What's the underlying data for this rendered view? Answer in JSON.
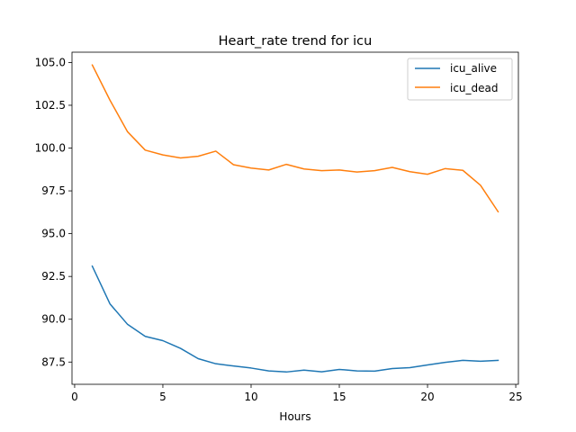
{
  "chart_data": {
    "type": "line",
    "title": "Heart_rate trend for icu",
    "xlabel": "Hours",
    "ylabel": "",
    "xlim": [
      -0.15,
      25.15
    ],
    "ylim": [
      86.2,
      105.6
    ],
    "xticks": [
      0,
      5,
      10,
      15,
      20,
      25
    ],
    "yticks": [
      87.5,
      90.0,
      92.5,
      95.0,
      97.5,
      100.0,
      102.5,
      105.0
    ],
    "xtick_labels": [
      "0",
      "5",
      "10",
      "15",
      "20",
      "25"
    ],
    "ytick_labels": [
      "87.5",
      "90.0",
      "92.5",
      "95.0",
      "97.5",
      "100.0",
      "102.5",
      "105.0"
    ],
    "grid": false,
    "legend_position": "top-right",
    "x": [
      1,
      2,
      3,
      4,
      5,
      6,
      7,
      8,
      9,
      10,
      11,
      12,
      13,
      14,
      15,
      16,
      17,
      18,
      19,
      20,
      21,
      22,
      23,
      24
    ],
    "series": [
      {
        "name": "icu_alive",
        "color": "#1f77b4",
        "values": [
          93.1,
          90.9,
          89.7,
          89.0,
          88.75,
          88.3,
          87.7,
          87.4,
          87.27,
          87.15,
          86.98,
          86.92,
          87.03,
          86.93,
          87.07,
          86.98,
          86.97,
          87.12,
          87.17,
          87.33,
          87.48,
          87.6,
          87.55,
          87.6
        ]
      },
      {
        "name": "icu_dead",
        "color": "#ff7f0e",
        "values": [
          104.85,
          102.8,
          100.95,
          99.88,
          99.6,
          99.42,
          99.52,
          99.82,
          99.03,
          98.83,
          98.72,
          99.05,
          98.78,
          98.68,
          98.72,
          98.6,
          98.68,
          98.87,
          98.62,
          98.47,
          98.8,
          98.7,
          97.83,
          96.28
        ]
      }
    ]
  }
}
